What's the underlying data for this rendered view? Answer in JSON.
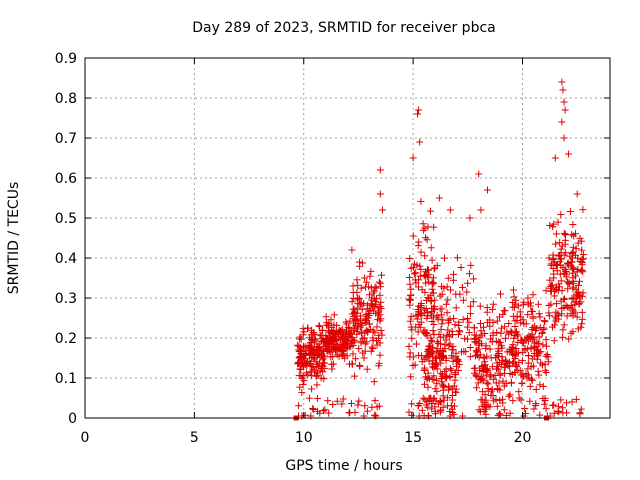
{
  "chart_data": {
    "type": "scatter",
    "title": "Day 289 of 2023, SRMTID for receiver pbca",
    "xlabel": "GPS time / hours",
    "ylabel": "SRMTID / TECUs",
    "xlim": [
      0,
      24
    ],
    "ylim": [
      0,
      0.9
    ],
    "xticks": [
      0,
      5,
      10,
      15,
      20
    ],
    "yticks": [
      0,
      0.1,
      0.2,
      0.3,
      0.4,
      0.5,
      0.6,
      0.7,
      0.8,
      0.9
    ],
    "ytick_labels": [
      "0",
      "0.1",
      "0.2",
      "0.3",
      "0.4",
      "0.5",
      "0.6",
      "0.7",
      "0.8",
      "0.9"
    ],
    "grid": true,
    "marker": "+",
    "series_color": "#e00000",
    "clusters": [
      {
        "x_range": [
          9.7,
          11.0
        ],
        "y_center": 0.15,
        "y_spread": 0.07,
        "count": 180
      },
      {
        "x_range": [
          11.0,
          12.2
        ],
        "y_center": 0.19,
        "y_spread": 0.06,
        "count": 150
      },
      {
        "x_range": [
          12.2,
          13.6
        ],
        "y_center": 0.25,
        "y_spread": 0.12,
        "count": 170
      },
      {
        "x_range": [
          14.8,
          16.0
        ],
        "y_center": 0.3,
        "y_spread": 0.2,
        "count": 150
      },
      {
        "x_range": [
          15.5,
          17.0
        ],
        "y_center": 0.12,
        "y_spread": 0.12,
        "count": 150
      },
      {
        "x_range": [
          16.0,
          17.8
        ],
        "y_center": 0.25,
        "y_spread": 0.15,
        "count": 80
      },
      {
        "x_range": [
          17.8,
          19.5
        ],
        "y_center": 0.15,
        "y_spread": 0.13,
        "count": 180
      },
      {
        "x_range": [
          19.5,
          21.2
        ],
        "y_center": 0.18,
        "y_spread": 0.14,
        "count": 170
      },
      {
        "x_range": [
          21.2,
          22.8
        ],
        "y_center": 0.35,
        "y_spread": 0.15,
        "count": 200
      }
    ],
    "notable_points": [
      {
        "x": 13.5,
        "y": 0.62
      },
      {
        "x": 13.5,
        "y": 0.56
      },
      {
        "x": 13.6,
        "y": 0.52
      },
      {
        "x": 15.2,
        "y": 0.76
      },
      {
        "x": 15.25,
        "y": 0.77
      },
      {
        "x": 15.0,
        "y": 0.65
      },
      {
        "x": 15.3,
        "y": 0.69
      },
      {
        "x": 18.0,
        "y": 0.61
      },
      {
        "x": 18.4,
        "y": 0.57
      },
      {
        "x": 21.8,
        "y": 0.84
      },
      {
        "x": 21.85,
        "y": 0.82
      },
      {
        "x": 21.9,
        "y": 0.79
      },
      {
        "x": 21.95,
        "y": 0.77
      },
      {
        "x": 21.8,
        "y": 0.74
      },
      {
        "x": 21.9,
        "y": 0.7
      },
      {
        "x": 22.1,
        "y": 0.66
      },
      {
        "x": 21.5,
        "y": 0.65
      },
      {
        "x": 22.5,
        "y": 0.56
      },
      {
        "x": 12.2,
        "y": 0.42
      },
      {
        "x": 16.2,
        "y": 0.55
      },
      {
        "x": 16.7,
        "y": 0.52
      },
      {
        "x": 18.1,
        "y": 0.52
      },
      {
        "x": 17.6,
        "y": 0.5
      }
    ],
    "axis_markers": [
      {
        "x": 9.65,
        "y": 0
      },
      {
        "x": 21.1,
        "y": 0
      }
    ]
  }
}
